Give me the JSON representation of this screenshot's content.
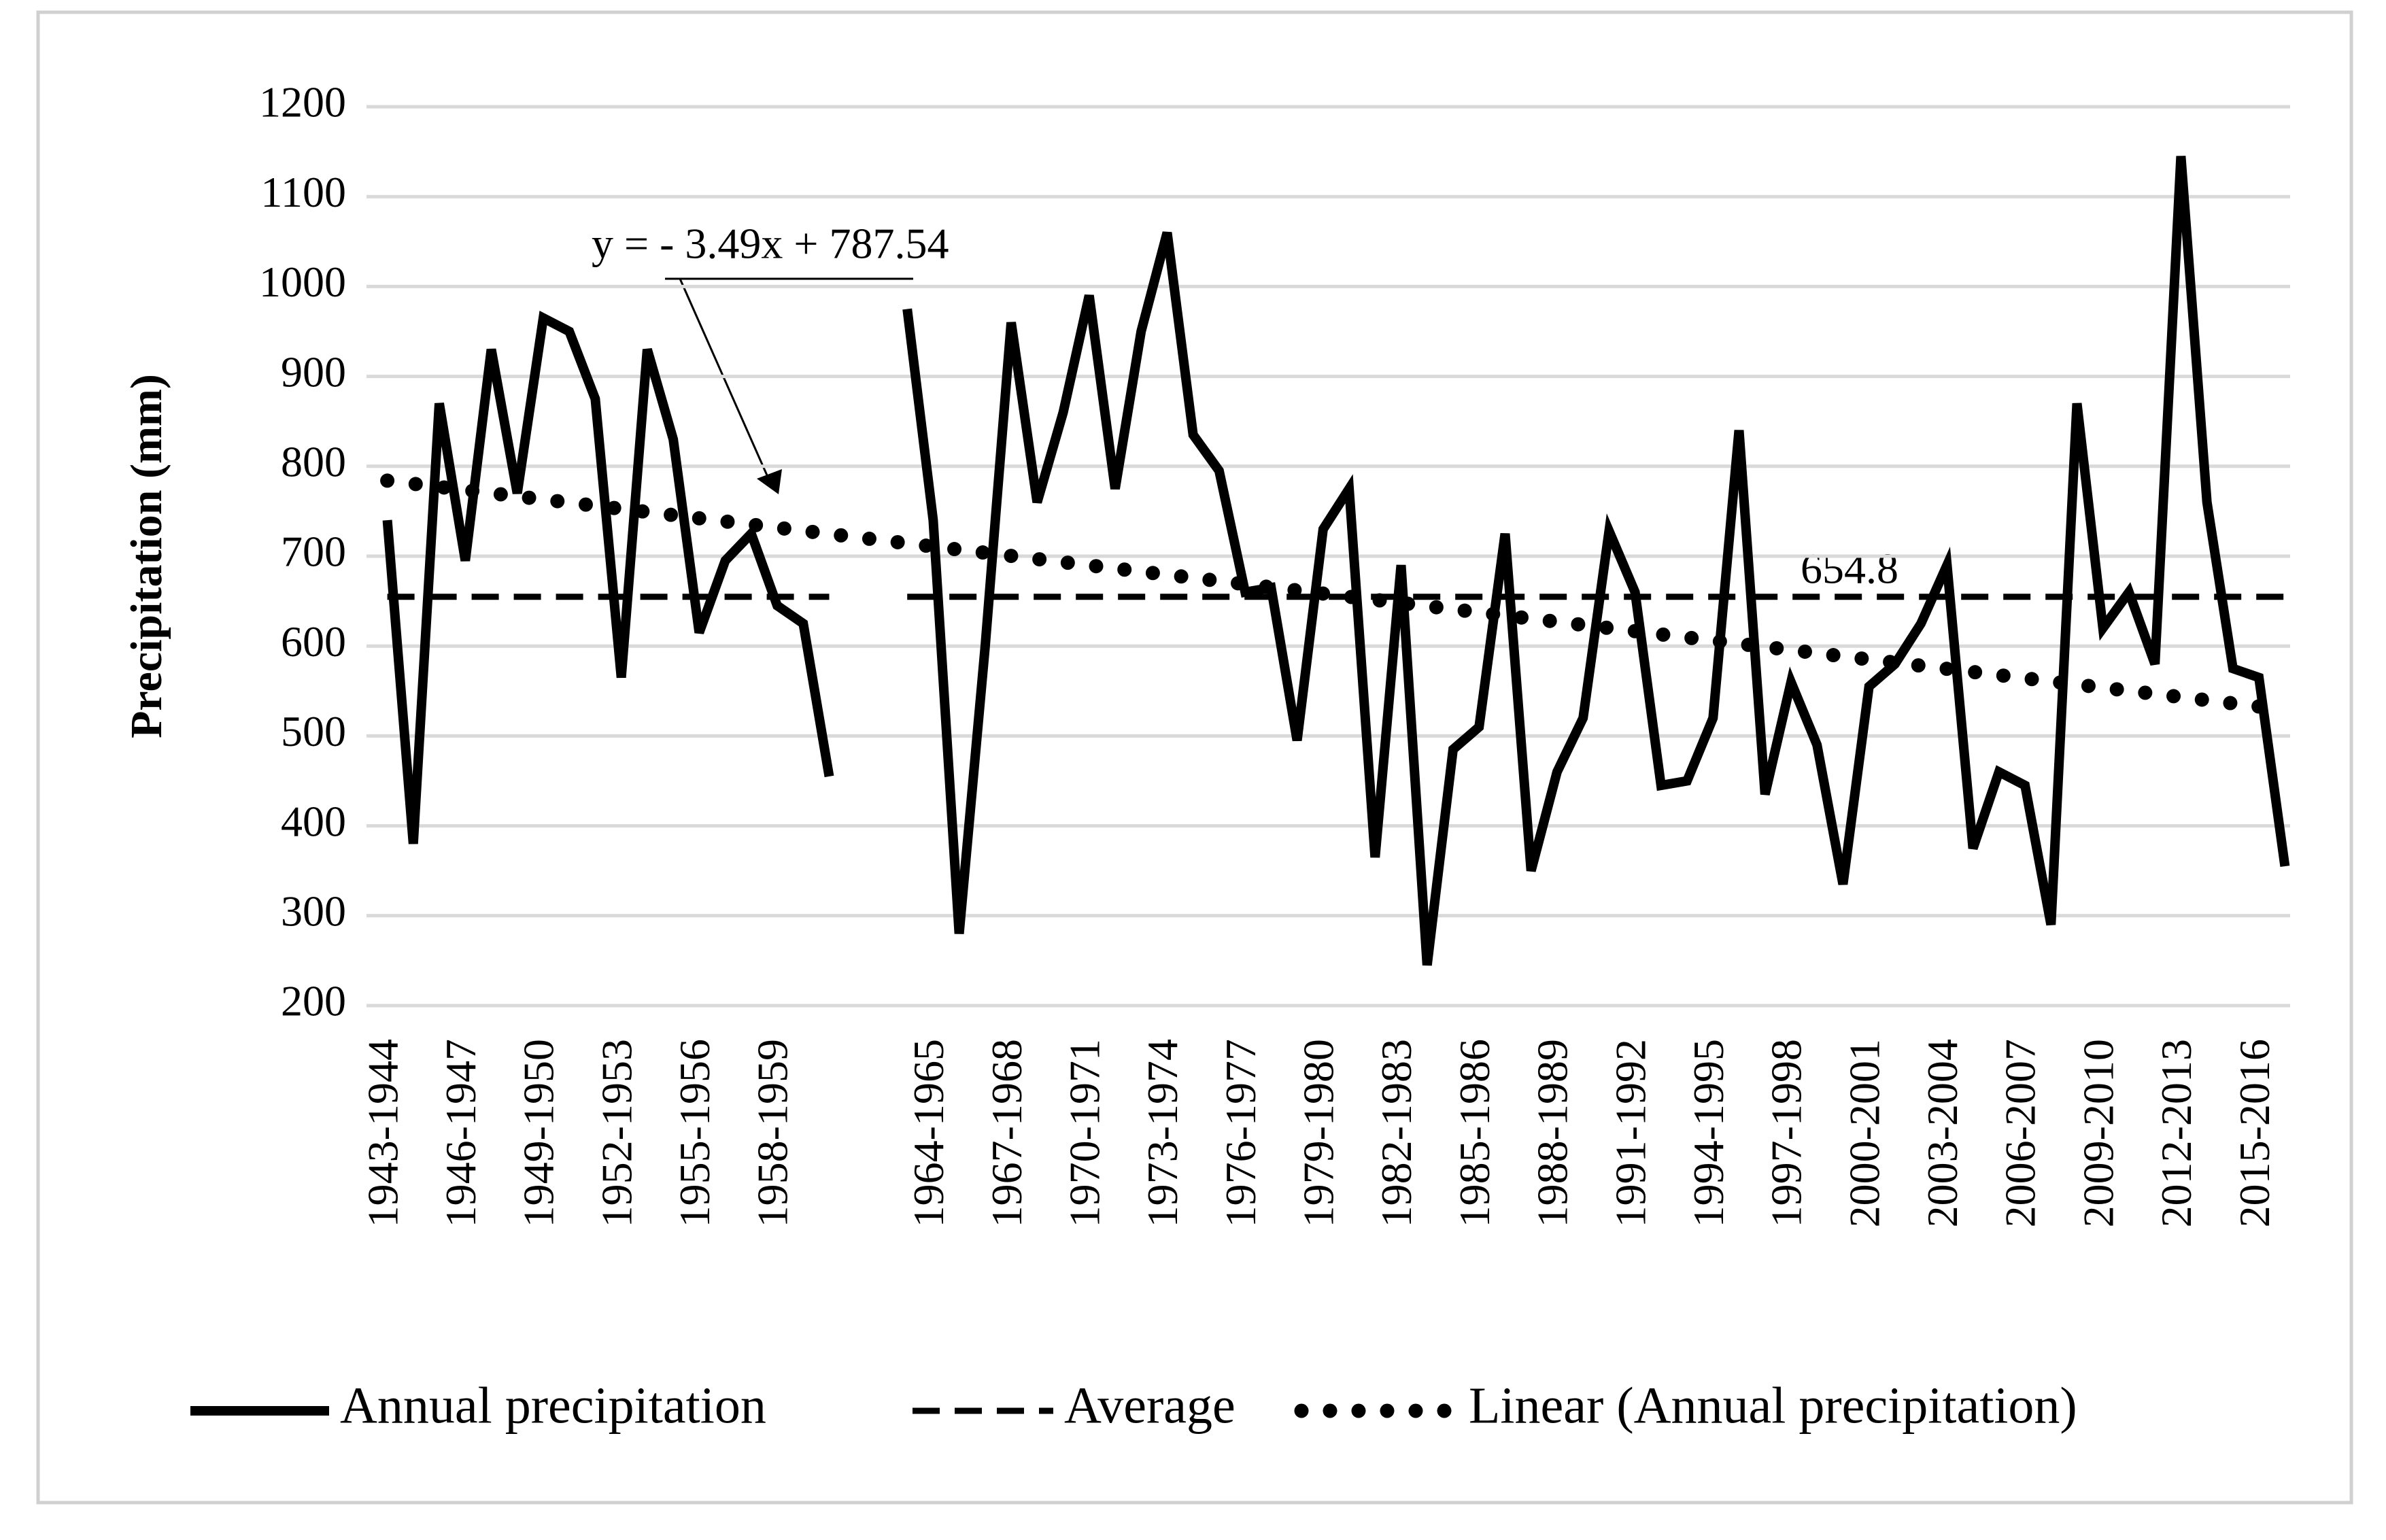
{
  "chart_data": {
    "type": "line",
    "y_axis_label": "Precipitation  (mm)",
    "categories": [
      "1943-1944",
      null,
      null,
      "1946-1947",
      null,
      null,
      "1949-1950",
      null,
      null,
      "1952-1953",
      null,
      null,
      "1955-1956",
      null,
      null,
      "1958-1959",
      null,
      null,
      null,
      null,
      null,
      "1964-1965",
      null,
      null,
      "1967-1968",
      null,
      null,
      "1970-1971",
      null,
      null,
      "1973-1974",
      null,
      null,
      "1976-1977",
      null,
      null,
      "1979-1980",
      null,
      null,
      "1982-1983",
      null,
      null,
      "1985-1986",
      null,
      null,
      "1988-1989",
      null,
      null,
      "1991-1992",
      null,
      null,
      "1994-1995",
      null,
      null,
      "1997-1998",
      null,
      null,
      "2000-2001",
      null,
      null,
      "2003-2004",
      null,
      null,
      "2006-2007",
      null,
      null,
      "2009-2010",
      null,
      null,
      "2012-2013",
      null,
      null,
      "2015-2016",
      null
    ],
    "series": [
      {
        "name": "Annual precipitation",
        "color": "#000000",
        "style": "solid",
        "values": [
          740,
          380,
          870,
          695,
          930,
          770,
          965,
          950,
          875,
          565,
          930,
          830,
          615,
          695,
          725,
          645,
          625,
          455,
          null,
          null,
          975,
          740,
          280,
          600,
          960,
          760,
          860,
          990,
          775,
          950,
          1060,
          835,
          795,
          660,
          665,
          495,
          730,
          775,
          365,
          690,
          245,
          485,
          510,
          725,
          350,
          460,
          520,
          728,
          660,
          445,
          450,
          520,
          840,
          435,
          560,
          490,
          335,
          555,
          580,
          625,
          690,
          375,
          460,
          445,
          290,
          870,
          620,
          660,
          580,
          1145,
          760,
          575,
          565,
          355
        ]
      },
      {
        "name": "Average",
        "color": "#000000",
        "style": "dashed",
        "values": [
          654.8,
          654.8,
          654.8,
          654.8,
          654.8,
          654.8,
          654.8,
          654.8,
          654.8,
          654.8,
          654.8,
          654.8,
          654.8,
          654.8,
          654.8,
          654.8,
          654.8,
          654.8,
          null,
          null,
          654.8,
          654.8,
          654.8,
          654.8,
          654.8,
          654.8,
          654.8,
          654.8,
          654.8,
          654.8,
          654.8,
          654.8,
          654.8,
          654.8,
          654.8,
          654.8,
          654.8,
          654.8,
          654.8,
          654.8,
          654.8,
          654.8,
          654.8,
          654.8,
          654.8,
          654.8,
          654.8,
          654.8,
          654.8,
          654.8,
          654.8,
          654.8,
          654.8,
          654.8,
          654.8,
          654.8,
          654.8,
          654.8,
          654.8,
          654.8,
          654.8,
          654.8,
          654.8,
          654.8,
          654.8,
          654.8,
          654.8,
          654.8,
          654.8,
          654.8,
          654.8,
          654.8,
          654.8,
          654.8
        ]
      },
      {
        "name": "Linear (Annual precipitation)",
        "color": "#000000",
        "style": "dotted",
        "values": [
          784.05,
          780.56,
          777.07,
          773.58,
          770.09,
          766.6,
          763.11,
          759.62,
          756.13,
          752.64,
          749.15,
          745.66,
          742.17,
          738.68,
          735.19,
          731.7,
          728.21,
          724.72,
          721.23,
          717.74,
          714.25,
          710.76,
          707.27,
          703.78,
          700.29,
          696.8,
          693.31,
          689.82,
          686.33,
          682.84,
          679.35,
          675.86,
          672.37,
          668.88,
          665.39,
          661.9,
          658.41,
          654.92,
          651.43,
          647.94,
          644.45,
          640.96,
          637.47,
          633.98,
          630.49,
          627,
          623.51,
          620.02,
          616.53,
          613.04,
          609.55,
          606.06,
          602.57,
          599.08,
          595.59,
          592.1,
          588.61,
          585.12,
          581.63,
          578.14,
          574.65,
          571.16,
          567.67,
          564.18,
          560.69,
          557.2,
          553.71,
          550.22,
          546.73,
          543.24,
          539.75,
          536.26,
          532.77,
          529.28
        ]
      }
    ],
    "annotations": [
      {
        "text": "y = - 3.49x + 787.54"
      },
      {
        "text": "654.8"
      }
    ],
    "ylim": [
      200,
      1200
    ],
    "yticks": [
      200,
      300,
      400,
      500,
      600,
      700,
      800,
      900,
      1000,
      1100,
      1200
    ],
    "grid": true,
    "legend": "bottom"
  }
}
